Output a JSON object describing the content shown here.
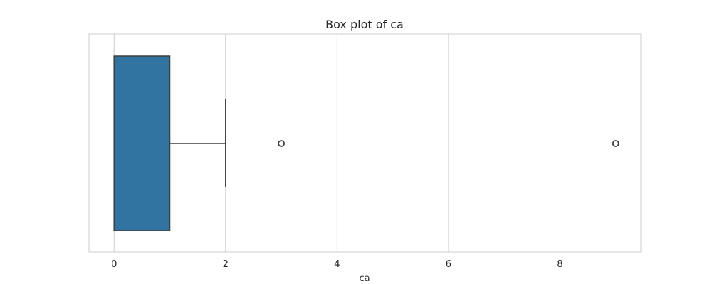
{
  "chart_data": {
    "type": "box",
    "title": "Box plot of ca",
    "xlabel": "ca",
    "ylabel": "",
    "orientation": "horizontal",
    "xlim": [
      -0.45,
      9.45
    ],
    "xticks": [
      0,
      2,
      4,
      6,
      8
    ],
    "xtick_labels": [
      "0",
      "2",
      "4",
      "6",
      "8"
    ],
    "grid": true,
    "series": [
      {
        "q1": 0,
        "median": 0,
        "q3": 1,
        "whisker_low": 0,
        "whisker_high": 2,
        "outliers": [
          3,
          9
        ]
      }
    ],
    "colors": {
      "box_fill": "#3274a1",
      "line": "#3f3f3f",
      "grid": "#cccccc",
      "spine": "#cccccc",
      "text": "#262626",
      "background": "#ffffff"
    }
  }
}
